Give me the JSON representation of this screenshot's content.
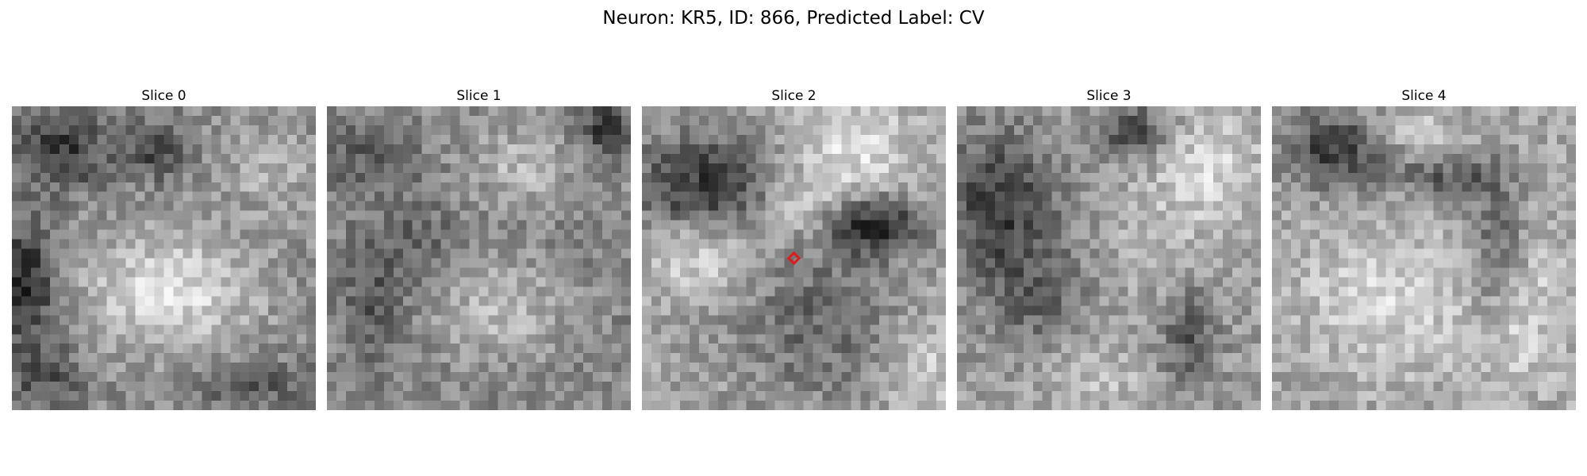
{
  "figure": {
    "title": "Neuron: KR5, ID: 866, Predicted Label: CV"
  },
  "panels": [
    {
      "title": "Slice 0"
    },
    {
      "title": "Slice 1"
    },
    {
      "title": "Slice 2"
    },
    {
      "title": "Slice 3"
    },
    {
      "title": "Slice 4"
    }
  ],
  "marker": {
    "panel_index": 2,
    "shape": "diamond",
    "color": "#e31a1c"
  },
  "colormap": "gray"
}
